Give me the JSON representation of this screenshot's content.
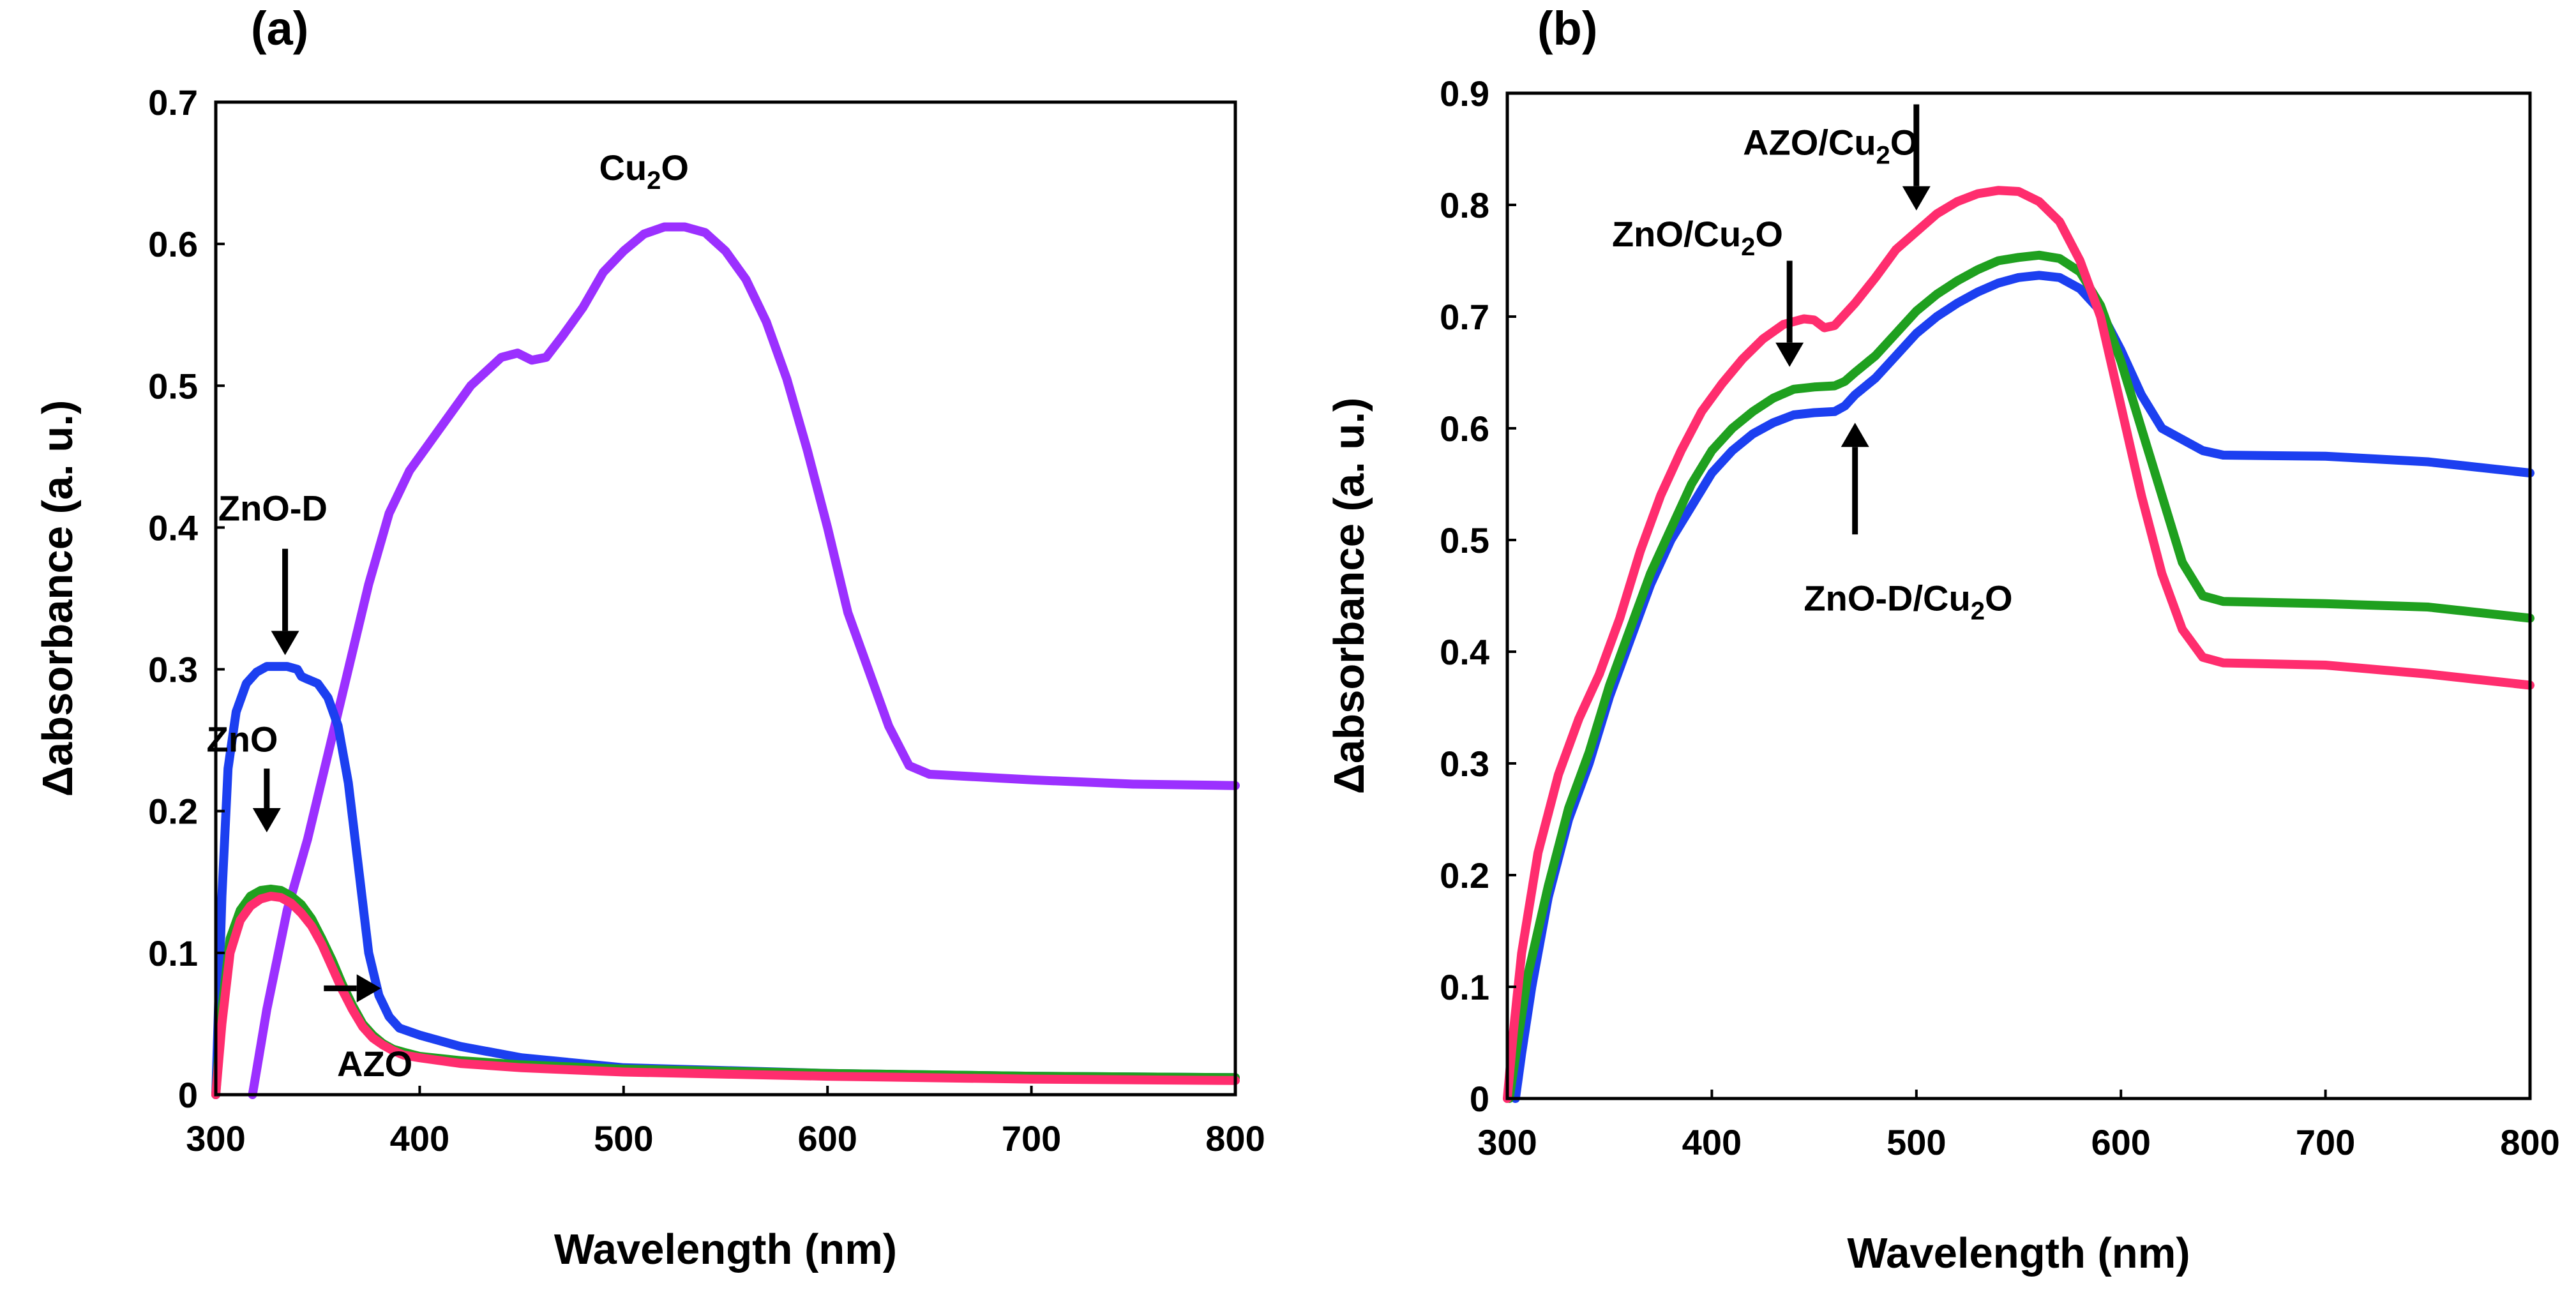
{
  "chart_data": [
    {
      "type": "line",
      "panel_label": "(a)",
      "xlabel": "Wavelength (nm)",
      "ylabel": "Δabsorbance (a. u.)",
      "xlim": [
        300,
        800
      ],
      "ylim": [
        0,
        0.7
      ],
      "x_ticks": [
        300,
        400,
        500,
        600,
        700,
        800
      ],
      "x_tick_labels": [
        "300",
        "400",
        "500",
        "600",
        "700",
        "800"
      ],
      "y_ticks": [
        0,
        0.1,
        0.2,
        0.3,
        0.4,
        0.5,
        0.6,
        0.7
      ],
      "y_tick_labels": [
        "0",
        "0.1",
        "0.2",
        "0.3",
        "0.4",
        "0.5",
        "0.6",
        "0.7"
      ],
      "grid": false,
      "series": [
        {
          "name": "Cu2O",
          "color": "#9b30ff",
          "x": [
            318,
            325,
            335,
            345,
            355,
            365,
            375,
            385,
            395,
            410,
            425,
            440,
            448,
            455,
            462,
            470,
            480,
            490,
            500,
            510,
            520,
            530,
            540,
            550,
            560,
            570,
            580,
            590,
            600,
            610,
            620,
            630,
            640,
            650,
            700,
            750,
            800
          ],
          "y": [
            0.0,
            0.06,
            0.13,
            0.18,
            0.24,
            0.3,
            0.36,
            0.41,
            0.44,
            0.47,
            0.5,
            0.52,
            0.523,
            0.518,
            0.52,
            0.535,
            0.555,
            0.58,
            0.595,
            0.607,
            0.612,
            0.612,
            0.608,
            0.595,
            0.575,
            0.545,
            0.505,
            0.455,
            0.4,
            0.34,
            0.3,
            0.26,
            0.232,
            0.226,
            0.222,
            0.219,
            0.218
          ]
        },
        {
          "name": "ZnO-D",
          "color": "#1c3ff0",
          "x": [
            300,
            303,
            306,
            310,
            315,
            320,
            325,
            330,
            335,
            340,
            342,
            345,
            350,
            355,
            360,
            365,
            370,
            375,
            380,
            385,
            390,
            400,
            420,
            450,
            500,
            600,
            700,
            800
          ],
          "y": [
            0.0,
            0.14,
            0.23,
            0.27,
            0.29,
            0.298,
            0.302,
            0.302,
            0.302,
            0.3,
            0.295,
            0.293,
            0.29,
            0.28,
            0.26,
            0.22,
            0.16,
            0.1,
            0.07,
            0.055,
            0.047,
            0.042,
            0.034,
            0.026,
            0.019,
            0.015,
            0.013,
            0.012
          ]
        },
        {
          "name": "ZnO",
          "color": "#1fa01f",
          "x": [
            300,
            303,
            307,
            312,
            317,
            322,
            327,
            332,
            337,
            342,
            347,
            352,
            357,
            362,
            367,
            372,
            377,
            382,
            387,
            392,
            400,
            420,
            450,
            500,
            600,
            700,
            800
          ],
          "y": [
            0.0,
            0.06,
            0.11,
            0.13,
            0.14,
            0.144,
            0.145,
            0.144,
            0.14,
            0.134,
            0.124,
            0.11,
            0.095,
            0.078,
            0.063,
            0.05,
            0.042,
            0.036,
            0.032,
            0.03,
            0.027,
            0.024,
            0.021,
            0.018,
            0.015,
            0.013,
            0.012
          ]
        },
        {
          "name": "AZO",
          "color": "#ff2d6e",
          "x": [
            300,
            303,
            307,
            312,
            317,
            322,
            327,
            332,
            337,
            342,
            347,
            352,
            357,
            362,
            367,
            372,
            377,
            382,
            387,
            392,
            400,
            420,
            450,
            500,
            600,
            700,
            800
          ],
          "y": [
            0.0,
            0.05,
            0.1,
            0.123,
            0.133,
            0.138,
            0.14,
            0.139,
            0.135,
            0.128,
            0.119,
            0.106,
            0.09,
            0.074,
            0.06,
            0.048,
            0.04,
            0.035,
            0.031,
            0.028,
            0.026,
            0.022,
            0.019,
            0.016,
            0.013,
            0.011,
            0.01
          ]
        }
      ],
      "annotations": [
        {
          "id": "cu2o",
          "text": "Cu",
          "sub": "2",
          "tail": "O",
          "x": 510,
          "y": 0.645
        },
        {
          "id": "znod",
          "text": "ZnO-D",
          "x": 328,
          "y": 0.405
        },
        {
          "id": "zno",
          "text": "ZnO",
          "x": 313,
          "y": 0.242
        },
        {
          "id": "azo",
          "text": "AZO",
          "x": 378,
          "y": 0.013
        }
      ],
      "arrows": [
        {
          "id": "znod-arrow",
          "direction": "down",
          "x": 334,
          "y_start": 0.385,
          "y_end": 0.31
        },
        {
          "id": "zno-arrow",
          "direction": "down",
          "x": 325,
          "y_start": 0.23,
          "y_end": 0.185
        },
        {
          "id": "azo-arrow",
          "direction": "right",
          "y": 0.075,
          "x_start": 353,
          "x_end": 381
        }
      ]
    },
    {
      "type": "line",
      "panel_label": "(b)",
      "xlabel": "Wavelength (nm)",
      "ylabel": "Δabsorbance (a. u.)",
      "xlim": [
        300,
        800
      ],
      "ylim": [
        0,
        0.9
      ],
      "x_ticks": [
        300,
        400,
        500,
        600,
        700,
        800
      ],
      "x_tick_labels": [
        "300",
        "400",
        "500",
        "600",
        "700",
        "800"
      ],
      "y_ticks": [
        0,
        0.1,
        0.2,
        0.3,
        0.4,
        0.5,
        0.6,
        0.7,
        0.8,
        0.9
      ],
      "y_tick_labels": [
        "0",
        "0.1",
        "0.2",
        "0.3",
        "0.4",
        "0.5",
        "0.6",
        "0.7",
        "0.8",
        "0.9"
      ],
      "grid": false,
      "series": [
        {
          "name": "ZnO-D/Cu2O",
          "color": "#1c3ff0",
          "x": [
            304,
            307,
            312,
            320,
            330,
            340,
            350,
            360,
            370,
            380,
            390,
            400,
            410,
            420,
            430,
            440,
            450,
            460,
            465,
            470,
            480,
            490,
            500,
            510,
            520,
            530,
            540,
            550,
            560,
            570,
            580,
            590,
            600,
            610,
            620,
            630,
            640,
            650,
            700,
            750,
            800
          ],
          "y": [
            0.0,
            0.04,
            0.1,
            0.18,
            0.25,
            0.3,
            0.36,
            0.41,
            0.46,
            0.5,
            0.53,
            0.56,
            0.58,
            0.595,
            0.605,
            0.612,
            0.614,
            0.615,
            0.62,
            0.63,
            0.645,
            0.665,
            0.685,
            0.7,
            0.712,
            0.722,
            0.73,
            0.735,
            0.737,
            0.735,
            0.725,
            0.705,
            0.67,
            0.63,
            0.6,
            0.59,
            0.58,
            0.576,
            0.575,
            0.57,
            0.56
          ]
        },
        {
          "name": "ZnO/Cu2O",
          "color": "#1fa01f",
          "x": [
            301,
            305,
            310,
            320,
            330,
            340,
            350,
            360,
            370,
            380,
            390,
            400,
            410,
            420,
            430,
            440,
            450,
            460,
            465,
            470,
            480,
            490,
            500,
            510,
            520,
            530,
            540,
            550,
            560,
            570,
            580,
            590,
            600,
            610,
            620,
            630,
            640,
            650,
            700,
            750,
            800
          ],
          "y": [
            0.0,
            0.05,
            0.11,
            0.19,
            0.26,
            0.31,
            0.37,
            0.42,
            0.47,
            0.51,
            0.55,
            0.58,
            0.6,
            0.615,
            0.627,
            0.635,
            0.637,
            0.638,
            0.642,
            0.65,
            0.665,
            0.685,
            0.705,
            0.72,
            0.732,
            0.742,
            0.75,
            0.753,
            0.755,
            0.752,
            0.74,
            0.71,
            0.66,
            0.6,
            0.54,
            0.48,
            0.45,
            0.445,
            0.443,
            0.44,
            0.43
          ]
        },
        {
          "name": "AZO/Cu2O",
          "color": "#ff2d6e",
          "x": [
            300,
            303,
            307,
            315,
            325,
            335,
            345,
            355,
            365,
            375,
            385,
            395,
            405,
            415,
            425,
            435,
            445,
            450,
            455,
            460,
            470,
            480,
            490,
            500,
            510,
            520,
            530,
            540,
            550,
            560,
            570,
            580,
            590,
            600,
            610,
            620,
            630,
            640,
            650,
            700,
            750,
            800
          ],
          "y": [
            0.0,
            0.06,
            0.13,
            0.22,
            0.29,
            0.34,
            0.38,
            0.43,
            0.49,
            0.54,
            0.58,
            0.615,
            0.64,
            0.662,
            0.68,
            0.693,
            0.698,
            0.697,
            0.69,
            0.692,
            0.712,
            0.735,
            0.76,
            0.776,
            0.792,
            0.803,
            0.81,
            0.813,
            0.812,
            0.803,
            0.785,
            0.75,
            0.7,
            0.62,
            0.54,
            0.47,
            0.42,
            0.395,
            0.39,
            0.388,
            0.38,
            0.37
          ]
        }
      ],
      "annotations": [
        {
          "id": "azo-cu2o",
          "text": "AZO/Cu",
          "sub": "2",
          "tail": "O",
          "x": 458,
          "y": 0.845
        },
        {
          "id": "zno-cu2o",
          "text": "ZnO/Cu",
          "sub": "2",
          "tail": "O",
          "x": 393,
          "y": 0.763
        },
        {
          "id": "znod-cu2o",
          "text": "ZnO-D/Cu",
          "sub": "2",
          "tail": "O",
          "x": 496,
          "y": 0.437
        }
      ],
      "arrows": [
        {
          "id": "azo-cu2o-arrow",
          "direction": "down",
          "x": 500,
          "y_start": 0.89,
          "y_end": 0.795
        },
        {
          "id": "zno-cu2o-arrow",
          "direction": "down",
          "x": 438,
          "y_start": 0.75,
          "y_end": 0.655
        },
        {
          "id": "znod-cu2o-arrow",
          "direction": "up",
          "x": 470,
          "y_start": 0.505,
          "y_end": 0.605
        }
      ]
    }
  ]
}
